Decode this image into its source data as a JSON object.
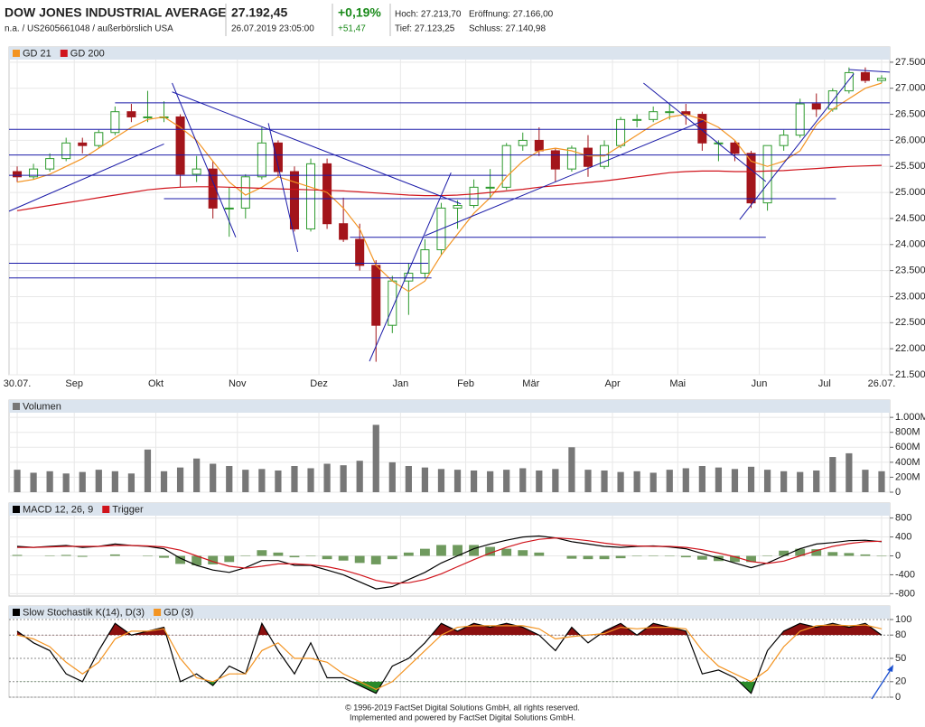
{
  "header": {
    "title": "DOW JONES INDUSTRIAL AVERAGE",
    "price": "27.192,45",
    "subtitle": "n.a. / US2605661048 / außerbörslich USA",
    "datetime": "26.07.2019 23:05:00",
    "change_pct": "+0,19%",
    "change_abs": "+51,47",
    "high": "Hoch: 27.213,70",
    "open": "Eröffnung: 27.166,00",
    "low": "Tief: 27.123,25",
    "close": "Schluss: 27.140,98"
  },
  "chart_data": [
    {
      "type": "candlestick",
      "up_color": "#2e9a2e",
      "down_color": "#a3151b",
      "grid": true,
      "xlim": [
        0,
        54
      ],
      "xticks": [
        {
          "value": 0.5,
          "label": "30.07."
        },
        {
          "value": 4,
          "label": "Sep"
        },
        {
          "value": 9,
          "label": "Okt"
        },
        {
          "value": 14,
          "label": "Nov"
        },
        {
          "value": 19,
          "label": "Dez"
        },
        {
          "value": 24,
          "label": "Jan"
        },
        {
          "value": 28,
          "label": "Feb"
        },
        {
          "value": 32,
          "label": "Mär"
        },
        {
          "value": 37,
          "label": "Apr"
        },
        {
          "value": 41,
          "label": "Mai"
        },
        {
          "value": 46,
          "label": "Jun"
        },
        {
          "value": 50,
          "label": "Jul"
        },
        {
          "value": 53.5,
          "label": "26.07."
        }
      ],
      "ylim": [
        21500,
        27550
      ],
      "yticks": [
        {
          "value": 21500,
          "label": "21.500"
        },
        {
          "value": 22000,
          "label": "22.000"
        },
        {
          "value": 22500,
          "label": "22.500"
        },
        {
          "value": 23000,
          "label": "23.000"
        },
        {
          "value": 23500,
          "label": "23.500"
        },
        {
          "value": 24000,
          "label": "24.000"
        },
        {
          "value": 24500,
          "label": "24.500"
        },
        {
          "value": 25000,
          "label": "25.000"
        },
        {
          "value": 25500,
          "label": "25.500"
        },
        {
          "value": 26000,
          "label": "26.000"
        },
        {
          "value": 26500,
          "label": "26.500"
        },
        {
          "value": 27000,
          "label": "27.000"
        },
        {
          "value": 27500,
          "label": "27.500"
        }
      ],
      "ohlc": [
        [
          25400,
          25500,
          25200,
          25300
        ],
        [
          25300,
          25550,
          25250,
          25450
        ],
        [
          25450,
          25750,
          25400,
          25650
        ],
        [
          25650,
          26050,
          25600,
          25950
        ],
        [
          25950,
          26050,
          25750,
          25900
        ],
        [
          25900,
          26200,
          25850,
          26150
        ],
        [
          26150,
          26650,
          26100,
          26550
        ],
        [
          26550,
          26700,
          26350,
          26450
        ],
        [
          26450,
          26950,
          26350,
          26450
        ],
        [
          26450,
          26750,
          26350,
          26450
        ],
        [
          26450,
          26500,
          25100,
          25350
        ],
        [
          25350,
          25700,
          25200,
          25450
        ],
        [
          25450,
          25600,
          24500,
          24700
        ],
        [
          24700,
          25100,
          24150,
          24700
        ],
        [
          24700,
          25350,
          24500,
          25300
        ],
        [
          25300,
          26250,
          25250,
          25950
        ],
        [
          25950,
          26000,
          25300,
          25400
        ],
        [
          25400,
          25500,
          24250,
          24300
        ],
        [
          24300,
          25650,
          24250,
          25550
        ],
        [
          25550,
          25650,
          24300,
          24400
        ],
        [
          24400,
          24900,
          24050,
          24100
        ],
        [
          24100,
          24400,
          23500,
          23600
        ],
        [
          23600,
          23700,
          21750,
          22450
        ],
        [
          22450,
          23400,
          22300,
          23300
        ],
        [
          23300,
          23650,
          22650,
          23450
        ],
        [
          23450,
          24100,
          23350,
          23900
        ],
        [
          23900,
          24800,
          23800,
          24700
        ],
        [
          24700,
          24850,
          24300,
          24750
        ],
        [
          24750,
          25250,
          24700,
          25100
        ],
        [
          25100,
          25450,
          24900,
          25100
        ],
        [
          25100,
          25950,
          25050,
          25900
        ],
        [
          25900,
          26150,
          25800,
          26000
        ],
        [
          26000,
          26250,
          25700,
          25800
        ],
        [
          25800,
          25850,
          25200,
          25450
        ],
        [
          25450,
          25900,
          25400,
          25850
        ],
        [
          25850,
          26100,
          25300,
          25500
        ],
        [
          25500,
          26000,
          25450,
          25900
        ],
        [
          25900,
          26450,
          25850,
          26400
        ],
        [
          26400,
          26500,
          26250,
          26400
        ],
        [
          26400,
          26650,
          26350,
          26550
        ],
        [
          26550,
          26700,
          26400,
          26550
        ],
        [
          26550,
          26700,
          26300,
          26500
        ],
        [
          26500,
          26550,
          25800,
          25950
        ],
        [
          25950,
          26000,
          25600,
          25950
        ],
        [
          25950,
          26000,
          25600,
          25750
        ],
        [
          25750,
          25800,
          24700,
          24800
        ],
        [
          24800,
          25900,
          24650,
          25900
        ],
        [
          25900,
          26200,
          25800,
          26100
        ],
        [
          26100,
          26800,
          26050,
          26700
        ],
        [
          26700,
          26900,
          26450,
          26600
        ],
        [
          26600,
          27000,
          26550,
          26950
        ],
        [
          26950,
          27400,
          26900,
          27300
        ],
        [
          27300,
          27400,
          27100,
          27150
        ],
        [
          27150,
          27250,
          27100,
          27190
        ]
      ],
      "series": [
        {
          "name": "GD 21",
          "color": "#f39422",
          "values": [
            25200,
            25250,
            25350,
            25500,
            25650,
            25850,
            26050,
            26250,
            26400,
            26450,
            26250,
            26000,
            25600,
            25200,
            24950,
            25100,
            25300,
            25200,
            25100,
            25000,
            24700,
            24300,
            23600,
            23300,
            23100,
            23300,
            23800,
            24200,
            24600,
            24900,
            25300,
            25600,
            25800,
            25850,
            25800,
            25700,
            25700,
            25900,
            26100,
            26300,
            26450,
            26500,
            26400,
            26250,
            26000,
            25600,
            25500,
            25600,
            25800,
            26300,
            26600,
            26800,
            27000,
            27100
          ]
        },
        {
          "name": "GD 200",
          "color": "#d0141c",
          "values": [
            24650,
            24700,
            24750,
            24800,
            24850,
            24900,
            24950,
            25000,
            25050,
            25080,
            25100,
            25110,
            25110,
            25100,
            25090,
            25080,
            25070,
            25060,
            25050,
            25040,
            25030,
            25010,
            24990,
            24970,
            24950,
            24940,
            24940,
            24950,
            24970,
            25000,
            25030,
            25060,
            25100,
            25130,
            25160,
            25190,
            25220,
            25260,
            25300,
            25340,
            25380,
            25400,
            25410,
            25410,
            25400,
            25400,
            25410,
            25420,
            25440,
            25460,
            25480,
            25500,
            25510,
            25520
          ]
        }
      ],
      "trendline_color": "#1a1aa8",
      "trendlines": [
        [
          6.5,
          26720,
          54,
          26720
        ],
        [
          0,
          26210,
          54,
          26210
        ],
        [
          0,
          25720,
          54,
          25720
        ],
        [
          0,
          25330,
          30.5,
          25330
        ],
        [
          9.5,
          24880,
          50.7,
          24880
        ],
        [
          20.9,
          24140,
          46.4,
          24140
        ],
        [
          0,
          23640,
          25.7,
          23640
        ],
        [
          0,
          23360,
          25.9,
          23360
        ],
        [
          0,
          24640,
          9.5,
          25930
        ],
        [
          10,
          27100,
          13.9,
          24140
        ],
        [
          10,
          26930,
          27.7,
          24780
        ],
        [
          15.9,
          26330,
          17.7,
          23860
        ],
        [
          22.1,
          21760,
          27.1,
          25380
        ],
        [
          25.5,
          24170,
          42.6,
          26380
        ],
        [
          38.9,
          27100,
          46.4,
          25210
        ],
        [
          44.8,
          24480,
          51.8,
          27280
        ],
        [
          51.5,
          27360,
          54,
          27310
        ]
      ]
    },
    {
      "type": "bar",
      "grid": true,
      "ylim": [
        0,
        1050
      ],
      "yticks": [
        0,
        {
          "value": 200,
          "label": "200M"
        },
        {
          "value": 400,
          "label": "400M"
        },
        {
          "value": 600,
          "label": "600M"
        },
        {
          "value": 800,
          "label": "800M"
        },
        {
          "value": 1000,
          "label": "1.000M"
        }
      ],
      "series": [
        {
          "name": "Volumen",
          "color": "#777777",
          "values": [
            300,
            260,
            280,
            250,
            270,
            300,
            280,
            250,
            570,
            280,
            330,
            450,
            380,
            350,
            300,
            310,
            290,
            350,
            320,
            380,
            360,
            420,
            900,
            400,
            350,
            330,
            310,
            300,
            290,
            280,
            300,
            320,
            290,
            310,
            600,
            300,
            290,
            270,
            280,
            260,
            300,
            320,
            350,
            330,
            310,
            340,
            300,
            280,
            270,
            290,
            470,
            520,
            300,
            280
          ]
        }
      ]
    },
    {
      "type": "line",
      "grid": true,
      "ylim": [
        -850,
        850
      ],
      "yticks": [
        -800,
        -400,
        0,
        400,
        800
      ],
      "histogram": {
        "color": "#6f9a5e",
        "values": [
          20,
          0,
          10,
          20,
          -20,
          0,
          30,
          0,
          -10,
          -40,
          -170,
          -200,
          -180,
          -130,
          10,
          120,
          70,
          -30,
          -10,
          -70,
          -100,
          -150,
          -180,
          -70,
          70,
          150,
          230,
          230,
          230,
          190,
          150,
          120,
          70,
          0,
          -60,
          -70,
          -70,
          -50,
          -10,
          10,
          -10,
          -30,
          -80,
          -110,
          -130,
          -130,
          10,
          110,
          150,
          140,
          80,
          60,
          30,
          -10
        ]
      },
      "series": [
        {
          "name": "MACD 12, 26, 9",
          "color": "#000000",
          "values": [
            200,
            180,
            200,
            220,
            180,
            200,
            250,
            220,
            200,
            150,
            -50,
            -200,
            -300,
            -350,
            -250,
            -100,
            -100,
            -200,
            -200,
            -300,
            -400,
            -550,
            -700,
            -650,
            -500,
            -350,
            -150,
            0,
            150,
            250,
            330,
            400,
            420,
            380,
            300,
            250,
            200,
            180,
            200,
            210,
            190,
            150,
            50,
            -50,
            -150,
            -250,
            -150,
            0,
            150,
            250,
            280,
            320,
            330,
            300
          ]
        },
        {
          "name": "Trigger",
          "color": "#d0141c",
          "values": [
            180,
            180,
            190,
            200,
            200,
            200,
            220,
            220,
            210,
            190,
            120,
            0,
            -120,
            -220,
            -260,
            -220,
            -170,
            -170,
            -190,
            -230,
            -300,
            -400,
            -520,
            -580,
            -570,
            -500,
            -380,
            -230,
            -80,
            60,
            180,
            280,
            350,
            380,
            360,
            320,
            270,
            230,
            210,
            200,
            200,
            180,
            130,
            60,
            -20,
            -120,
            -160,
            -110,
            0,
            110,
            200,
            260,
            300,
            310
          ]
        }
      ]
    },
    {
      "type": "line",
      "grid": true,
      "ylim": [
        0,
        100
      ],
      "yticks": [
        0,
        20,
        50,
        80,
        100
      ],
      "bands": [
        {
          "above": 80,
          "color": "#8b1010"
        },
        {
          "below": 20,
          "color": "#2a8a2a"
        }
      ],
      "series": [
        {
          "name": "Slow Stochastik K(14), D(3)",
          "color": "#000000",
          "values": [
            85,
            70,
            60,
            30,
            20,
            60,
            95,
            80,
            85,
            90,
            20,
            30,
            15,
            40,
            30,
            95,
            60,
            30,
            70,
            25,
            25,
            15,
            5,
            40,
            50,
            70,
            95,
            85,
            95,
            90,
            95,
            90,
            80,
            60,
            90,
            70,
            85,
            95,
            80,
            95,
            90,
            85,
            30,
            35,
            25,
            5,
            60,
            85,
            95,
            90,
            95,
            90,
            95,
            80
          ]
        },
        {
          "name": "GD (3)",
          "color": "#f39422",
          "values": [
            80,
            75,
            65,
            45,
            30,
            45,
            75,
            85,
            85,
            88,
            50,
            25,
            20,
            30,
            30,
            60,
            70,
            50,
            50,
            45,
            30,
            20,
            10,
            20,
            40,
            60,
            80,
            90,
            92,
            92,
            92,
            92,
            88,
            75,
            78,
            80,
            82,
            90,
            88,
            90,
            90,
            88,
            60,
            40,
            30,
            20,
            35,
            65,
            85,
            92,
            93,
            92,
            93,
            88
          ]
        }
      ]
    }
  ],
  "footer": [
    "© 1996-2019 FactSet Digital Solutions GmbH, all rights reserved.",
    "Implemented and powered by FactSet Digital Solutions GmbH."
  ]
}
